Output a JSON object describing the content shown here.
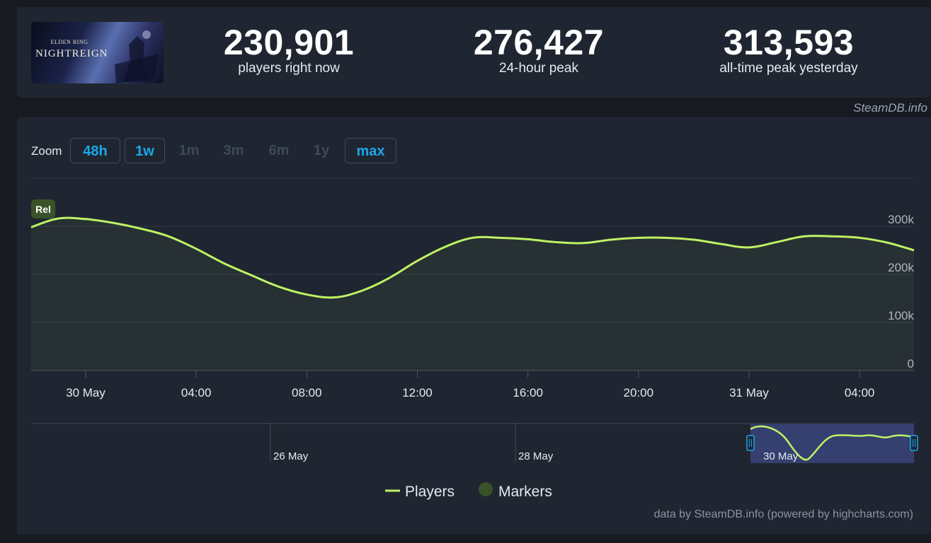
{
  "game": {
    "logo_top": "ELDEN RING",
    "logo_main": "NIGHTREIGN"
  },
  "stats": [
    {
      "value": "230,901",
      "label": "players right now"
    },
    {
      "value": "276,427",
      "label": "24-hour peak"
    },
    {
      "value": "313,593",
      "label": "all-time peak yesterday"
    }
  ],
  "credit": "SteamDB.info",
  "zoom": {
    "label": "Zoom",
    "buttons": [
      {
        "label": "48h",
        "state": "active"
      },
      {
        "label": "1w",
        "state": "active"
      },
      {
        "label": "1m",
        "state": "disabled"
      },
      {
        "label": "3m",
        "state": "disabled"
      },
      {
        "label": "6m",
        "state": "disabled"
      },
      {
        "label": "1y",
        "state": "disabled"
      },
      {
        "label": "max",
        "state": "active"
      }
    ]
  },
  "chart_data": {
    "type": "area",
    "series": [
      {
        "name": "Players",
        "color": "#bef264",
        "x_hours": [
          -2,
          -1,
          0,
          1,
          2,
          3,
          4,
          5,
          6,
          7,
          8,
          9,
          10,
          11,
          12,
          13,
          14,
          15,
          16,
          17,
          18,
          19,
          20,
          21,
          22,
          23,
          24,
          25,
          26,
          27,
          28,
          29,
          30
        ],
        "values": [
          298000,
          316000,
          315000,
          307000,
          295000,
          279000,
          253000,
          223000,
          198000,
          174000,
          158000,
          152000,
          166000,
          193000,
          228000,
          257000,
          276000,
          276000,
          273000,
          267000,
          265000,
          272000,
          276000,
          276000,
          272000,
          263000,
          256000,
          267000,
          279000,
          279000,
          276000,
          266000,
          250000
        ]
      }
    ],
    "y_ticks": [
      "300k",
      "200k",
      "100k",
      "0"
    ],
    "y_tick_values": [
      300000,
      200000,
      100000,
      0
    ],
    "ylim": [
      0,
      400000
    ],
    "x_ticks": [
      "30 May",
      "04:00",
      "08:00",
      "12:00",
      "16:00",
      "20:00",
      "31 May",
      "04:00"
    ],
    "x_tick_hours": [
      0,
      4,
      8,
      12,
      16,
      20,
      24,
      28
    ],
    "flag": "Rel",
    "navigator_ticks": [
      "26 May",
      "28 May",
      "30 May"
    ],
    "legend": [
      {
        "name": "Players",
        "color": "#bef264"
      },
      {
        "name": "Markers",
        "color": "#3a5228"
      }
    ],
    "footer": "data by SteamDB.info (powered by highcharts.com)"
  }
}
